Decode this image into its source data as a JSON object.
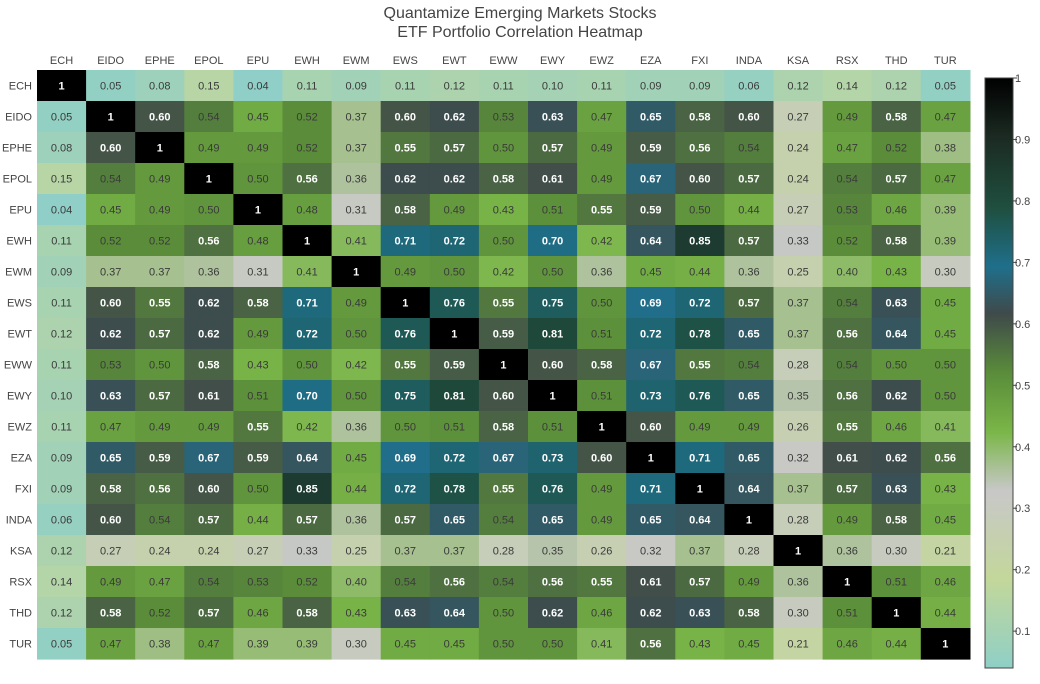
{
  "chart_data": {
    "type": "heatmap",
    "title": "Quantamize Emerging Markets Stocks",
    "subtitle": "ETF Portfolio Correlation Heatmap",
    "x": [
      "ECH",
      "EIDO",
      "EPHE",
      "EPOL",
      "EPU",
      "EWH",
      "EWM",
      "EWS",
      "EWT",
      "EWW",
      "EWY",
      "EWZ",
      "EZA",
      "FXI",
      "INDA",
      "KSA",
      "RSX",
      "THD",
      "TUR"
    ],
    "y": [
      "ECH",
      "EIDO",
      "EPHE",
      "EPOL",
      "EPU",
      "EWH",
      "EWM",
      "EWS",
      "EWT",
      "EWW",
      "EWY",
      "EWZ",
      "EZA",
      "FXI",
      "INDA",
      "KSA",
      "RSX",
      "THD",
      "TUR"
    ],
    "z": [
      [
        "1",
        "0.05",
        "0.08",
        "0.15",
        "0.04",
        "0.11",
        "0.09",
        "0.11",
        "0.12",
        "0.11",
        "0.10",
        "0.11",
        "0.09",
        "0.09",
        "0.06",
        "0.12",
        "0.14",
        "0.12",
        "0.05"
      ],
      [
        "0.05",
        "1",
        "0.60",
        "0.54",
        "0.45",
        "0.52",
        "0.37",
        "0.60",
        "0.62",
        "0.53",
        "0.63",
        "0.47",
        "0.65",
        "0.58",
        "0.60",
        "0.27",
        "0.49",
        "0.58",
        "0.47"
      ],
      [
        "0.08",
        "0.60",
        "1",
        "0.49",
        "0.49",
        "0.52",
        "0.37",
        "0.55",
        "0.57",
        "0.50",
        "0.57",
        "0.49",
        "0.59",
        "0.56",
        "0.54",
        "0.24",
        "0.47",
        "0.52",
        "0.38"
      ],
      [
        "0.15",
        "0.54",
        "0.49",
        "1",
        "0.50",
        "0.56",
        "0.36",
        "0.62",
        "0.62",
        "0.58",
        "0.61",
        "0.49",
        "0.67",
        "0.60",
        "0.57",
        "0.24",
        "0.54",
        "0.57",
        "0.47"
      ],
      [
        "0.04",
        "0.45",
        "0.49",
        "0.50",
        "1",
        "0.48",
        "0.31",
        "0.58",
        "0.49",
        "0.43",
        "0.51",
        "0.55",
        "0.59",
        "0.50",
        "0.44",
        "0.27",
        "0.53",
        "0.46",
        "0.39"
      ],
      [
        "0.11",
        "0.52",
        "0.52",
        "0.56",
        "0.48",
        "1",
        "0.41",
        "0.71",
        "0.72",
        "0.50",
        "0.70",
        "0.42",
        "0.64",
        "0.85",
        "0.57",
        "0.33",
        "0.52",
        "0.58",
        "0.39"
      ],
      [
        "0.09",
        "0.37",
        "0.37",
        "0.36",
        "0.31",
        "0.41",
        "1",
        "0.49",
        "0.50",
        "0.42",
        "0.50",
        "0.36",
        "0.45",
        "0.44",
        "0.36",
        "0.25",
        "0.40",
        "0.43",
        "0.30"
      ],
      [
        "0.11",
        "0.60",
        "0.55",
        "0.62",
        "0.58",
        "0.71",
        "0.49",
        "1",
        "0.76",
        "0.55",
        "0.75",
        "0.50",
        "0.69",
        "0.72",
        "0.57",
        "0.37",
        "0.54",
        "0.63",
        "0.45"
      ],
      [
        "0.12",
        "0.62",
        "0.57",
        "0.62",
        "0.49",
        "0.72",
        "0.50",
        "0.76",
        "1",
        "0.59",
        "0.81",
        "0.51",
        "0.72",
        "0.78",
        "0.65",
        "0.37",
        "0.56",
        "0.64",
        "0.45"
      ],
      [
        "0.11",
        "0.53",
        "0.50",
        "0.58",
        "0.43",
        "0.50",
        "0.42",
        "0.55",
        "0.59",
        "1",
        "0.60",
        "0.58",
        "0.67",
        "0.55",
        "0.54",
        "0.28",
        "0.54",
        "0.50",
        "0.50"
      ],
      [
        "0.10",
        "0.63",
        "0.57",
        "0.61",
        "0.51",
        "0.70",
        "0.50",
        "0.75",
        "0.81",
        "0.60",
        "1",
        "0.51",
        "0.73",
        "0.76",
        "0.65",
        "0.35",
        "0.56",
        "0.62",
        "0.50"
      ],
      [
        "0.11",
        "0.47",
        "0.49",
        "0.49",
        "0.55",
        "0.42",
        "0.36",
        "0.50",
        "0.51",
        "0.58",
        "0.51",
        "1",
        "0.60",
        "0.49",
        "0.49",
        "0.26",
        "0.55",
        "0.46",
        "0.41"
      ],
      [
        "0.09",
        "0.65",
        "0.59",
        "0.67",
        "0.59",
        "0.64",
        "0.45",
        "0.69",
        "0.72",
        "0.67",
        "0.73",
        "0.60",
        "1",
        "0.71",
        "0.65",
        "0.32",
        "0.61",
        "0.62",
        "0.56"
      ],
      [
        "0.09",
        "0.58",
        "0.56",
        "0.60",
        "0.50",
        "0.85",
        "0.44",
        "0.72",
        "0.78",
        "0.55",
        "0.76",
        "0.49",
        "0.71",
        "1",
        "0.64",
        "0.37",
        "0.57",
        "0.63",
        "0.43"
      ],
      [
        "0.06",
        "0.60",
        "0.54",
        "0.57",
        "0.44",
        "0.57",
        "0.36",
        "0.57",
        "0.65",
        "0.54",
        "0.65",
        "0.49",
        "0.65",
        "0.64",
        "1",
        "0.28",
        "0.49",
        "0.58",
        "0.45"
      ],
      [
        "0.12",
        "0.27",
        "0.24",
        "0.24",
        "0.27",
        "0.33",
        "0.25",
        "0.37",
        "0.37",
        "0.28",
        "0.35",
        "0.26",
        "0.32",
        "0.37",
        "0.28",
        "1",
        "0.36",
        "0.30",
        "0.21"
      ],
      [
        "0.14",
        "0.49",
        "0.47",
        "0.54",
        "0.53",
        "0.52",
        "0.40",
        "0.54",
        "0.56",
        "0.54",
        "0.56",
        "0.55",
        "0.61",
        "0.57",
        "0.49",
        "0.36",
        "1",
        "0.51",
        "0.46"
      ],
      [
        "0.12",
        "0.58",
        "0.52",
        "0.57",
        "0.46",
        "0.58",
        "0.43",
        "0.63",
        "0.64",
        "0.50",
        "0.62",
        "0.46",
        "0.62",
        "0.63",
        "0.58",
        "0.30",
        "0.51",
        "1",
        "0.44"
      ],
      [
        "0.05",
        "0.47",
        "0.38",
        "0.47",
        "0.39",
        "0.39",
        "0.30",
        "0.45",
        "0.45",
        "0.50",
        "0.50",
        "0.41",
        "0.56",
        "0.43",
        "0.45",
        "0.21",
        "0.46",
        "0.44",
        "1"
      ]
    ],
    "colorscale": [
      [
        0.0,
        "#8fcfc7"
      ],
      [
        0.15,
        "#c3d79a"
      ],
      [
        0.3,
        "#c8c8c8"
      ],
      [
        0.4,
        "#7ab648"
      ],
      [
        0.5,
        "#5a8c3a"
      ],
      [
        0.6,
        "#3f4a4a"
      ],
      [
        0.68,
        "#1f6f8b"
      ],
      [
        0.78,
        "#1f4f3f"
      ],
      [
        0.9,
        "#1b2a22"
      ],
      [
        1.0,
        "#000000"
      ]
    ],
    "colorbar": {
      "range": [
        0.04,
        1
      ],
      "ticks": [
        "0.1",
        "0.2",
        "0.3",
        "0.4",
        "0.5",
        "0.6",
        "0.7",
        "0.8",
        "0.9",
        "1"
      ]
    }
  }
}
